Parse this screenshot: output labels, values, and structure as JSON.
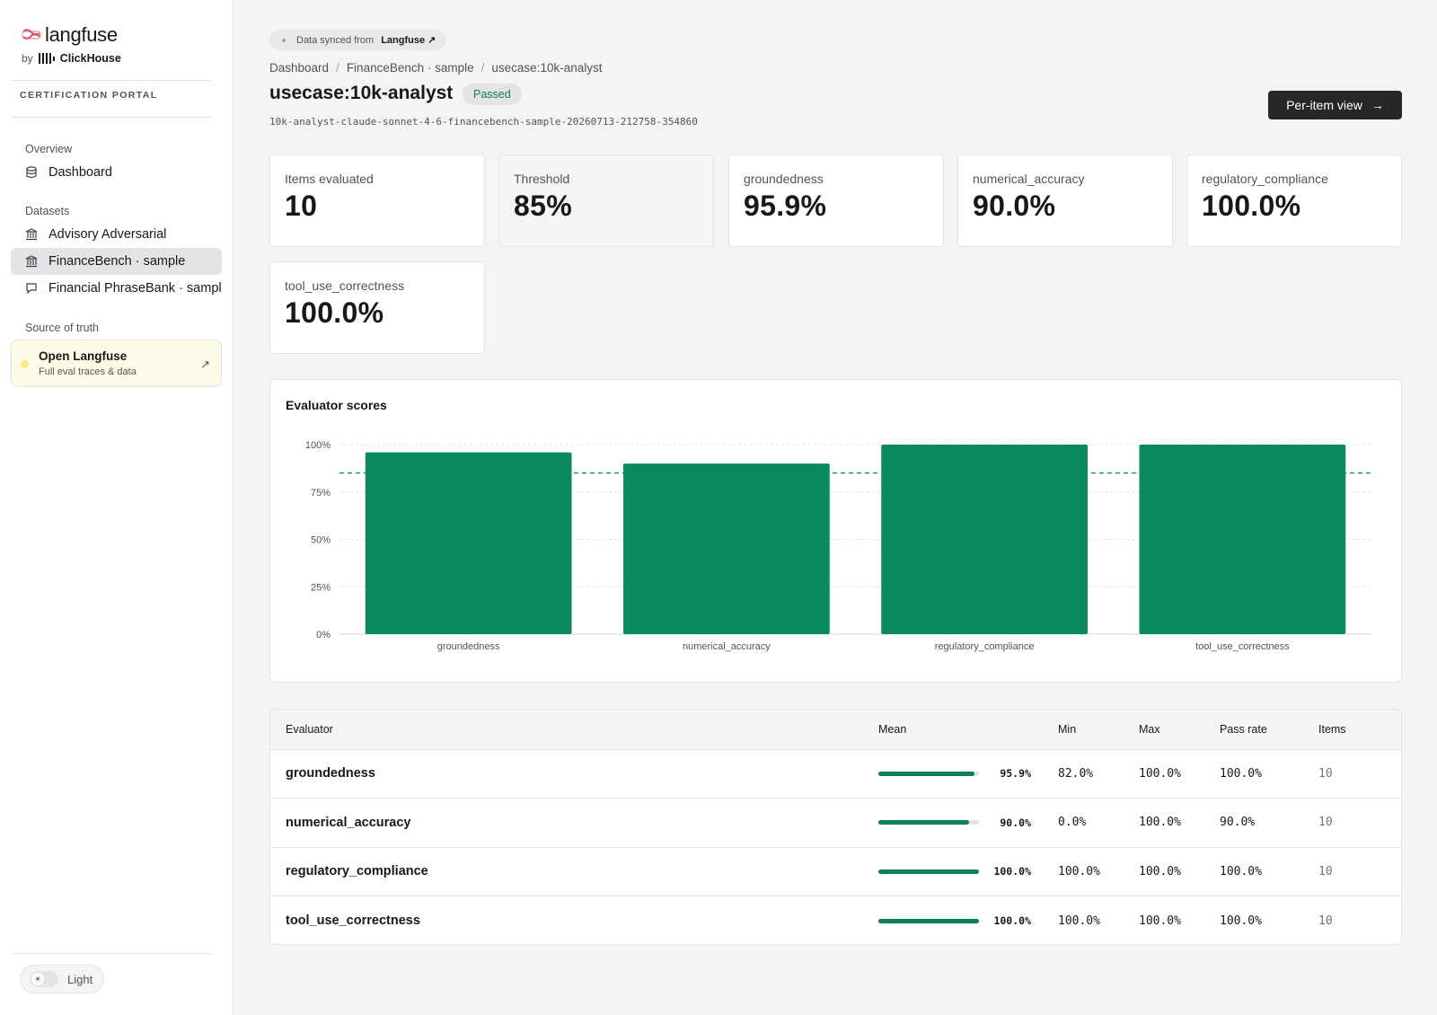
{
  "sidebar": {
    "brand": "langfuse",
    "by_prefix": "by",
    "by_company": "ClickHouse",
    "portal_label": "CERTIFICATION PORTAL",
    "sections": {
      "overview": "Overview",
      "datasets": "Datasets",
      "source": "Source of truth"
    },
    "items": [
      {
        "label": "Dashboard",
        "icon": "database-icon"
      },
      {
        "label": "Advisory Adversarial",
        "icon": "bank-icon"
      },
      {
        "label": "FinanceBench · sample",
        "icon": "bank-icon"
      },
      {
        "label": "Financial PhraseBank · sample",
        "icon": "chat-bubble-icon"
      }
    ],
    "cta": {
      "title": "Open Langfuse",
      "subtitle": "Full eval traces & data",
      "arrow": "↗"
    },
    "theme": {
      "label": "Light",
      "icon": "sun-icon",
      "knob": "☀"
    }
  },
  "header": {
    "sync_prefix": "Data synced from",
    "sync_source": "Langfuse ↗",
    "breadcrumb": [
      "Dashboard",
      "FinanceBench · sample",
      "usecase:10k-analyst"
    ],
    "breadcrumb_sep": "/",
    "title": "usecase:10k-analyst",
    "status": "Passed",
    "run_id": "10k-analyst-claude-sonnet-4-6-financebench-sample-20260713-212758-354860",
    "per_item_label": "Per-item view",
    "per_item_arrow": "→"
  },
  "stats": [
    {
      "label": "Items evaluated",
      "value": "10"
    },
    {
      "label": "Threshold",
      "value": "85%"
    },
    {
      "label": "groundedness",
      "value": "95.9%"
    },
    {
      "label": "numerical_accuracy",
      "value": "90.0%"
    },
    {
      "label": "regulatory_compliance",
      "value": "100.0%"
    },
    {
      "label": "tool_use_correctness",
      "value": "100.0%"
    }
  ],
  "chart": {
    "title": "Evaluator scores"
  },
  "chart_data": {
    "type": "bar",
    "title": "Evaluator scores",
    "categories": [
      "groundedness",
      "numerical_accuracy",
      "regulatory_compliance",
      "tool_use_correctness"
    ],
    "values": [
      95.9,
      90.0,
      100.0,
      100.0
    ],
    "yticks": [
      "0%",
      "25%",
      "50%",
      "75%",
      "100%"
    ],
    "ylim": [
      0,
      100
    ],
    "threshold": 85,
    "grid": true,
    "bar_color": "#0b8a5f",
    "threshold_color": "#0b8a5f"
  },
  "table": {
    "headers": [
      "Evaluator",
      "Mean",
      "Min",
      "Max",
      "Pass rate",
      "Items"
    ],
    "rows": [
      {
        "name": "groundedness",
        "mean": "95.9%",
        "mean_fraction": 0.959,
        "min": "82.0%",
        "max": "100.0%",
        "pass_rate": "100.0%",
        "items": "10"
      },
      {
        "name": "numerical_accuracy",
        "mean": "90.0%",
        "mean_fraction": 0.9,
        "min": "0.0%",
        "max": "100.0%",
        "pass_rate": "90.0%",
        "items": "10"
      },
      {
        "name": "regulatory_compliance",
        "mean": "100.0%",
        "mean_fraction": 1.0,
        "min": "100.0%",
        "max": "100.0%",
        "pass_rate": "100.0%",
        "items": "10"
      },
      {
        "name": "tool_use_correctness",
        "mean": "100.0%",
        "mean_fraction": 1.0,
        "min": "100.0%",
        "max": "100.0%",
        "pass_rate": "100.0%",
        "items": "10"
      }
    ]
  },
  "colors": {
    "accent": "#0b8a5f",
    "status_text": "#0b7f55",
    "primary_button": "#27272a"
  }
}
